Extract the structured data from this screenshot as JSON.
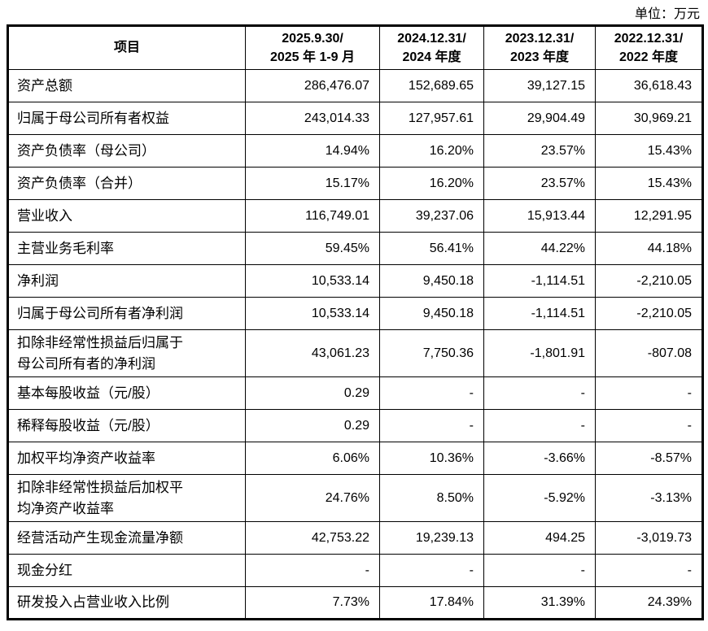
{
  "unit_label": "单位：万元",
  "table": {
    "header": {
      "item": "项目",
      "periods": [
        {
          "line1": "2025.9.30/",
          "line2": "2025 年 1-9 月"
        },
        {
          "line1": "2024.12.31/",
          "line2": "2024 年度"
        },
        {
          "line1": "2023.12.31/",
          "line2": "2023 年度"
        },
        {
          "line1": "2022.12.31/",
          "line2": "2022 年度"
        }
      ]
    },
    "rows": [
      {
        "label": "资产总额",
        "values": [
          "286,476.07",
          "152,689.65",
          "39,127.15",
          "36,618.43"
        ]
      },
      {
        "label": "归属于母公司所有者权益",
        "values": [
          "243,014.33",
          "127,957.61",
          "29,904.49",
          "30,969.21"
        ]
      },
      {
        "label": "资产负债率（母公司）",
        "values": [
          "14.94%",
          "16.20%",
          "23.57%",
          "15.43%"
        ]
      },
      {
        "label": "资产负债率（合并）",
        "values": [
          "15.17%",
          "16.20%",
          "23.57%",
          "15.43%"
        ]
      },
      {
        "label": "营业收入",
        "values": [
          "116,749.01",
          "39,237.06",
          "15,913.44",
          "12,291.95"
        ]
      },
      {
        "label": "主营业务毛利率",
        "values": [
          "59.45%",
          "56.41%",
          "44.22%",
          "44.18%"
        ]
      },
      {
        "label": "净利润",
        "values": [
          "10,533.14",
          "9,450.18",
          "-1,114.51",
          "-2,210.05"
        ]
      },
      {
        "label": "归属于母公司所有者净利润",
        "values": [
          "10,533.14",
          "9,450.18",
          "-1,114.51",
          "-2,210.05"
        ]
      },
      {
        "label": "扣除非经常性损益后归属于\n母公司所有者的净利润",
        "values": [
          "43,061.23",
          "7,750.36",
          "-1,801.91",
          "-807.08"
        ]
      },
      {
        "label": "基本每股收益（元/股）",
        "values": [
          "0.29",
          "-",
          "-",
          "-"
        ]
      },
      {
        "label": "稀释每股收益（元/股）",
        "values": [
          "0.29",
          "-",
          "-",
          "-"
        ]
      },
      {
        "label": "加权平均净资产收益率",
        "values": [
          "6.06%",
          "10.36%",
          "-3.66%",
          "-8.57%"
        ]
      },
      {
        "label": "扣除非经常性损益后加权平\n均净资产收益率",
        "values": [
          "24.76%",
          "8.50%",
          "-5.92%",
          "-3.13%"
        ]
      },
      {
        "label": "经营活动产生现金流量净额",
        "values": [
          "42,753.22",
          "19,239.13",
          "494.25",
          "-3,019.73"
        ]
      },
      {
        "label": "现金分红",
        "values": [
          "-",
          "-",
          "-",
          "-"
        ]
      },
      {
        "label": "研发投入占营业收入比例",
        "values": [
          "7.73%",
          "17.84%",
          "31.39%",
          "24.39%"
        ]
      }
    ]
  }
}
